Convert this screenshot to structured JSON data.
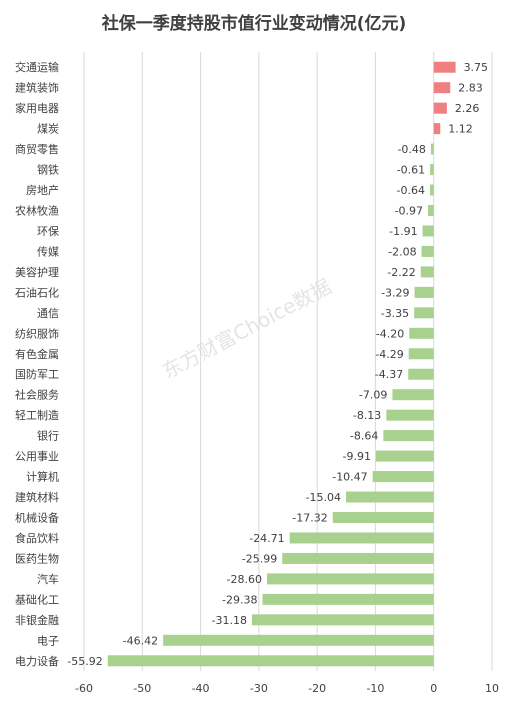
{
  "chart_data": {
    "type": "bar",
    "orientation": "horizontal",
    "title": "社保一季度持股市值行业变动情况(亿元)",
    "watermark": "东方财富Choice数据",
    "categories": [
      "交通运输",
      "建筑装饰",
      "家用电器",
      "煤炭",
      "商贸零售",
      "钢铁",
      "房地产",
      "农林牧渔",
      "环保",
      "传媒",
      "美容护理",
      "石油石化",
      "通信",
      "纺织服饰",
      "有色金属",
      "国防军工",
      "社会服务",
      "轻工制造",
      "银行",
      "公用事业",
      "计算机",
      "建筑材料",
      "机械设备",
      "食品饮料",
      "医药生物",
      "汽车",
      "基础化工",
      "非银金融",
      "电子",
      "电力设备"
    ],
    "values": [
      3.75,
      2.83,
      2.26,
      1.12,
      -0.48,
      -0.61,
      -0.64,
      -0.97,
      -1.91,
      -2.08,
      -2.22,
      -3.29,
      -3.35,
      -4.2,
      -4.29,
      -4.37,
      -7.09,
      -8.13,
      -8.64,
      -9.91,
      -10.47,
      -15.04,
      -17.32,
      -24.71,
      -25.99,
      -28.6,
      -29.38,
      -31.18,
      -46.42,
      -55.92
    ],
    "value_labels": [
      "3.75",
      "2.83",
      "2.26",
      "1.12",
      "-0.48",
      "-0.61",
      "-0.64",
      "-0.97",
      "-1.91",
      "-2.08",
      "-2.22",
      "-3.29",
      "-3.35",
      "-4.20",
      "-4.29",
      "-4.37",
      "-7.09",
      "-8.13",
      "-8.64",
      "-9.91",
      "-10.47",
      "-15.04",
      "-17.32",
      "-24.71",
      "-25.99",
      "-28.60",
      "-29.38",
      "-31.18",
      "-46.42",
      "-55.92"
    ],
    "xlim": [
      -60,
      10
    ],
    "xticks": [
      -60,
      -50,
      -40,
      -30,
      -20,
      -10,
      0,
      10
    ],
    "xtick_labels": [
      "-60",
      "-50",
      "-40",
      "-30",
      "-20",
      "-10",
      "0",
      "10"
    ],
    "grid": true,
    "colors": {
      "positive": "#f08080",
      "negative": "#a9d18e",
      "grid": "#d9d9d9",
      "text": "#404040"
    }
  }
}
